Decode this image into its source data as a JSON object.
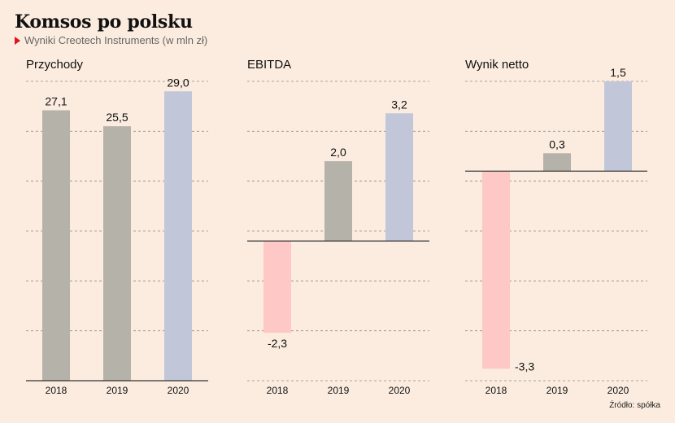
{
  "title": "Komsos po polsku",
  "subtitle": "Wyniki Creotech Instruments (w mln zł)",
  "source": "Źródło: spółka",
  "colors": {
    "background": "#fbecdf",
    "past": "#b5b3a9",
    "current": "#c1c7d9",
    "negative": "#fdc8c6",
    "accent": "#e0121b"
  },
  "chart_data": [
    {
      "type": "bar",
      "title": "Przychody",
      "categories": [
        "2018",
        "2019",
        "2020"
      ],
      "values": [
        27.1,
        25.5,
        29.0
      ],
      "labels": [
        "27,1",
        "25,5",
        "29,0"
      ],
      "ylim": [
        0,
        30
      ],
      "grid": true
    },
    {
      "type": "bar",
      "title": "EBITDA",
      "categories": [
        "2018",
        "2019",
        "2020"
      ],
      "values": [
        -2.3,
        2.0,
        3.2
      ],
      "labels": [
        "-2,3",
        "2,0",
        "3,2"
      ],
      "ylim": [
        -3.5,
        4
      ],
      "grid": true
    },
    {
      "type": "bar",
      "title": "Wynik netto",
      "categories": [
        "2018",
        "2019",
        "2020"
      ],
      "values": [
        -3.3,
        0.3,
        1.5
      ],
      "labels": [
        "-3,3",
        "0,3",
        "1,5"
      ],
      "ylim": [
        -3.5,
        1.5
      ],
      "grid": true
    }
  ]
}
